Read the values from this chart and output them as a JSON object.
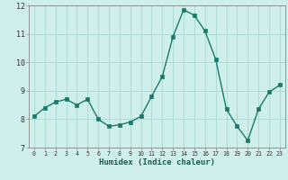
{
  "x": [
    0,
    1,
    2,
    3,
    4,
    5,
    6,
    7,
    8,
    9,
    10,
    11,
    12,
    13,
    14,
    15,
    16,
    17,
    18,
    19,
    20,
    21,
    22,
    23
  ],
  "y": [
    8.1,
    8.4,
    8.6,
    8.7,
    8.5,
    8.7,
    8.0,
    7.75,
    7.8,
    7.9,
    8.1,
    8.8,
    9.5,
    10.9,
    11.85,
    11.65,
    11.1,
    10.1,
    8.35,
    7.75,
    7.25,
    8.35,
    8.95,
    9.2
  ],
  "xlabel": "Humidex (Indice chaleur)",
  "ylim": [
    7,
    12
  ],
  "xlim": [
    -0.5,
    23.5
  ],
  "yticks": [
    7,
    8,
    9,
    10,
    11,
    12
  ],
  "xticks": [
    0,
    1,
    2,
    3,
    4,
    5,
    6,
    7,
    8,
    9,
    10,
    11,
    12,
    13,
    14,
    15,
    16,
    17,
    18,
    19,
    20,
    21,
    22,
    23
  ],
  "line_color": "#1a7a6a",
  "marker_color": "#1a7a6a",
  "bg_color": "#cff0ea",
  "grid_color": "#aad8d0",
  "axes_color": "#888888",
  "xlabel_color": "#1a5a54",
  "tick_color": "#333333"
}
